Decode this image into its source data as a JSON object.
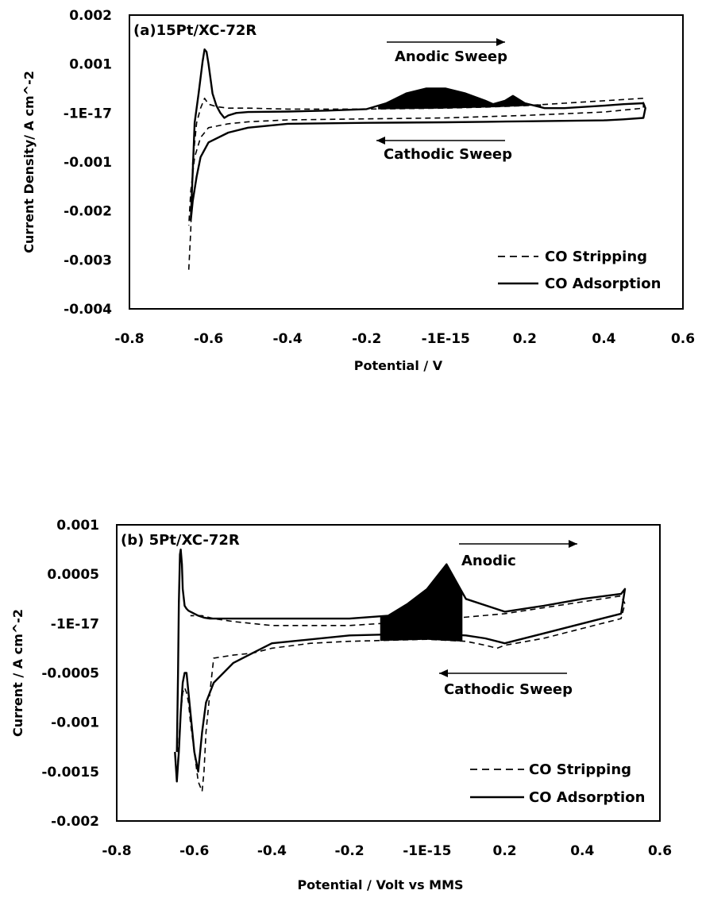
{
  "chart_data": [
    {
      "type": "line",
      "panel_label": "(a)15Pt/XC-72R",
      "xlabel": "Potential / V",
      "ylabel": "Current Density/ A cm^-2",
      "xlim": [
        -0.8,
        0.6
      ],
      "ylim": [
        -0.004,
        0.002
      ],
      "x_ticks": [
        -0.8,
        -0.6,
        -0.4,
        -0.2,
        0.0,
        0.2,
        0.4,
        0.6
      ],
      "x_tick_labels": [
        "-0.8",
        "-0.6",
        "-0.4",
        "-0.2",
        "-1E-15",
        "0.2",
        "0.4",
        "0.6"
      ],
      "y_ticks": [
        0.002,
        0.001,
        0.0,
        -0.001,
        -0.002,
        -0.003,
        -0.004
      ],
      "y_tick_labels": [
        "0.002",
        "0.001",
        "-1E-17",
        "-0.001",
        "-0.002",
        "-0.003",
        "-0.004"
      ],
      "annotations": [
        {
          "text": "Anodic Sweep",
          "arrow": "right",
          "x": -0.05,
          "y": 0.00115
        },
        {
          "text": "Cathodic Sweep",
          "arrow": "left",
          "x": -0.05,
          "y": -0.00055
        }
      ],
      "legend": {
        "placement": "bottom-right",
        "entries": [
          {
            "name": "CO Stripping",
            "style": "dashed"
          },
          {
            "name": "CO Adsorption",
            "style": "solid"
          }
        ]
      },
      "series": [
        {
          "name": "CO Stripping",
          "style": "dashed",
          "x": [
            -0.65,
            -0.645,
            -0.64,
            -0.63,
            -0.62,
            -0.61,
            -0.6,
            -0.58,
            -0.55,
            -0.5,
            -0.4,
            -0.2,
            0.0,
            0.1,
            0.2,
            0.3,
            0.4,
            0.5,
            0.5,
            0.4,
            0.2,
            0.0,
            -0.2,
            -0.4,
            -0.5,
            -0.55,
            -0.6,
            -0.62,
            -0.635,
            -0.645,
            -0.65
          ],
          "y": [
            -0.0032,
            -0.0024,
            -0.001,
            -0.0002,
            0.0001,
            0.0003,
            0.00018,
            0.00013,
            0.0001,
            0.0001,
            8e-05,
            8e-05,
            0.0001,
            0.00012,
            0.00015,
            0.0002,
            0.00025,
            0.0003,
            0.0001,
            2e-05,
            -5e-05,
            -0.0001,
            -0.00012,
            -0.00014,
            -0.00018,
            -0.00022,
            -0.0003,
            -0.0005,
            -0.0009,
            -0.0016,
            -0.0023
          ]
        },
        {
          "name": "CO Adsorption",
          "style": "solid",
          "x": [
            -0.645,
            -0.64,
            -0.635,
            -0.625,
            -0.615,
            -0.61,
            -0.605,
            -0.6,
            -0.595,
            -0.59,
            -0.58,
            -0.57,
            -0.56,
            -0.55,
            -0.53,
            -0.5,
            -0.4,
            -0.3,
            -0.2,
            -0.15,
            -0.1,
            -0.05,
            0.0,
            0.05,
            0.1,
            0.12,
            0.15,
            0.17,
            0.2,
            0.25,
            0.3,
            0.4,
            0.45,
            0.5,
            0.505,
            0.5,
            0.45,
            0.4,
            0.3,
            0.2,
            0.1,
            0.0,
            -0.2,
            -0.4,
            -0.5,
            -0.55,
            -0.6,
            -0.62,
            -0.63,
            -0.64,
            -0.645
          ],
          "y": [
            -0.0022,
            -0.0012,
            -0.0002,
            0.0004,
            0.00105,
            0.0013,
            0.00125,
            0.001,
            0.0007,
            0.0004,
            0.00015,
            0.0,
            -0.0001,
            -5e-05,
            0.0,
            2e-05,
            3e-05,
            5e-05,
            8e-05,
            0.0002,
            0.0004,
            0.0005,
            0.0005,
            0.0004,
            0.00025,
            0.00018,
            0.00025,
            0.00035,
            0.0002,
            0.0001,
            0.0001,
            0.00015,
            0.00018,
            0.0002,
            0.0001,
            -0.0001,
            -0.00013,
            -0.00015,
            -0.00016,
            -0.00017,
            -0.00018,
            -0.00019,
            -0.0002,
            -0.00022,
            -0.0003,
            -0.0004,
            -0.0006,
            -0.0009,
            -0.0013,
            -0.0018,
            -0.0022
          ]
        }
      ]
    },
    {
      "type": "line",
      "panel_label": "(b) 5Pt/XC-72R",
      "xlabel": "Potential / Volt vs MMS",
      "ylabel": "Current / A cm^-2",
      "xlim": [
        -0.8,
        0.6
      ],
      "ylim": [
        -0.002,
        0.001
      ],
      "x_ticks": [
        -0.8,
        -0.6,
        -0.4,
        -0.2,
        0.0,
        0.2,
        0.4,
        0.6
      ],
      "x_tick_labels": [
        "-0.8",
        "-0.6",
        "-0.4",
        "-0.2",
        "-1E-15",
        "0.2",
        "0.4",
        "0.6"
      ],
      "y_ticks": [
        0.001,
        0.0005,
        0.0,
        -0.0005,
        -0.001,
        -0.0015,
        -0.002
      ],
      "y_tick_labels": [
        "0.001",
        "0.0005",
        "-1E-17",
        "-0.0005",
        "-0.001",
        "-0.0015",
        "-0.002"
      ],
      "annotations": [
        {
          "text": "Anodic",
          "arrow": "right",
          "x": 0.15,
          "y": 0.0008
        },
        {
          "text": "Cathodic Sweep",
          "arrow": "left",
          "x": 0.15,
          "y": -0.00042
        }
      ],
      "legend": {
        "placement": "bottom-right",
        "entries": [
          {
            "name": "CO Stripping",
            "style": "dashed"
          },
          {
            "name": "CO Adsorption",
            "style": "solid"
          }
        ]
      },
      "series": [
        {
          "name": "CO Stripping",
          "style": "dashed",
          "x": [
            -0.645,
            -0.64,
            -0.635,
            -0.63,
            -0.625,
            -0.62,
            -0.615,
            -0.61,
            -0.6,
            -0.59,
            -0.58,
            -0.575,
            -0.57,
            -0.56,
            -0.55,
            -0.5,
            -0.45,
            -0.4,
            -0.3,
            -0.2,
            0.0,
            0.1,
            0.15,
            0.18,
            0.2,
            0.3,
            0.4,
            0.5,
            0.51,
            0.5,
            0.4,
            0.2,
            0.0,
            -0.2,
            -0.4,
            -0.5,
            -0.55,
            -0.58,
            -0.6,
            -0.61
          ],
          "y": [
            -0.0016,
            -0.0012,
            -0.0009,
            -0.0007,
            -0.00065,
            -0.0007,
            -0.0008,
            -0.001,
            -0.0013,
            -0.0016,
            -0.0017,
            -0.0015,
            -0.0011,
            -0.0007,
            -0.00035,
            -0.00032,
            -0.0003,
            -0.00025,
            -0.0002,
            -0.00018,
            -0.00016,
            -0.00018,
            -0.00022,
            -0.00025,
            -0.00022,
            -0.00015,
            -5e-05,
            5e-05,
            0.0002,
            0.00028,
            0.00022,
            0.0001,
            3e-05,
            -2e-05,
            -2e-05,
            2e-05,
            5e-05,
            8e-05,
            8e-05,
            8e-05
          ]
        },
        {
          "name": "CO Adsorption",
          "style": "solid",
          "x": [
            -0.645,
            -0.642,
            -0.64,
            -0.637,
            -0.635,
            -0.632,
            -0.63,
            -0.625,
            -0.62,
            -0.615,
            -0.61,
            -0.6,
            -0.59,
            -0.575,
            -0.56,
            -0.55,
            -0.5,
            -0.4,
            -0.3,
            -0.2,
            -0.1,
            -0.05,
            0.0,
            0.05,
            0.1,
            0.2,
            0.3,
            0.4,
            0.5,
            0.51,
            0.5,
            0.4,
            0.3,
            0.2,
            0.15,
            0.1,
            0.0,
            -0.2,
            -0.4,
            -0.45,
            -0.5,
            -0.55,
            -0.57,
            -0.58,
            -0.59,
            -0.6,
            -0.61,
            -0.62,
            -0.625,
            -0.63,
            -0.635,
            -0.64,
            -0.645,
            -0.65
          ],
          "y": [
            -0.0013,
            -0.0005,
            0.0002,
            0.0007,
            0.00075,
            0.0006,
            0.00035,
            0.00018,
            0.00015,
            0.00013,
            0.00012,
            0.0001,
            8e-05,
            6e-05,
            5e-05,
            5e-05,
            5e-05,
            5e-05,
            5e-05,
            5e-05,
            8e-05,
            0.0002,
            0.00035,
            0.0006,
            0.00025,
            0.00012,
            0.00018,
            0.00025,
            0.0003,
            0.00035,
            0.0001,
            0.0,
            -0.0001,
            -0.0002,
            -0.00015,
            -0.00012,
            -0.0001,
            -0.00012,
            -0.0002,
            -0.0003,
            -0.0004,
            -0.0006,
            -0.0008,
            -0.0011,
            -0.0015,
            -0.0013,
            -0.0009,
            -0.0005,
            -0.0005,
            -0.0006,
            -0.0009,
            -0.0013,
            -0.0016,
            -0.0013
          ]
        }
      ]
    }
  ]
}
